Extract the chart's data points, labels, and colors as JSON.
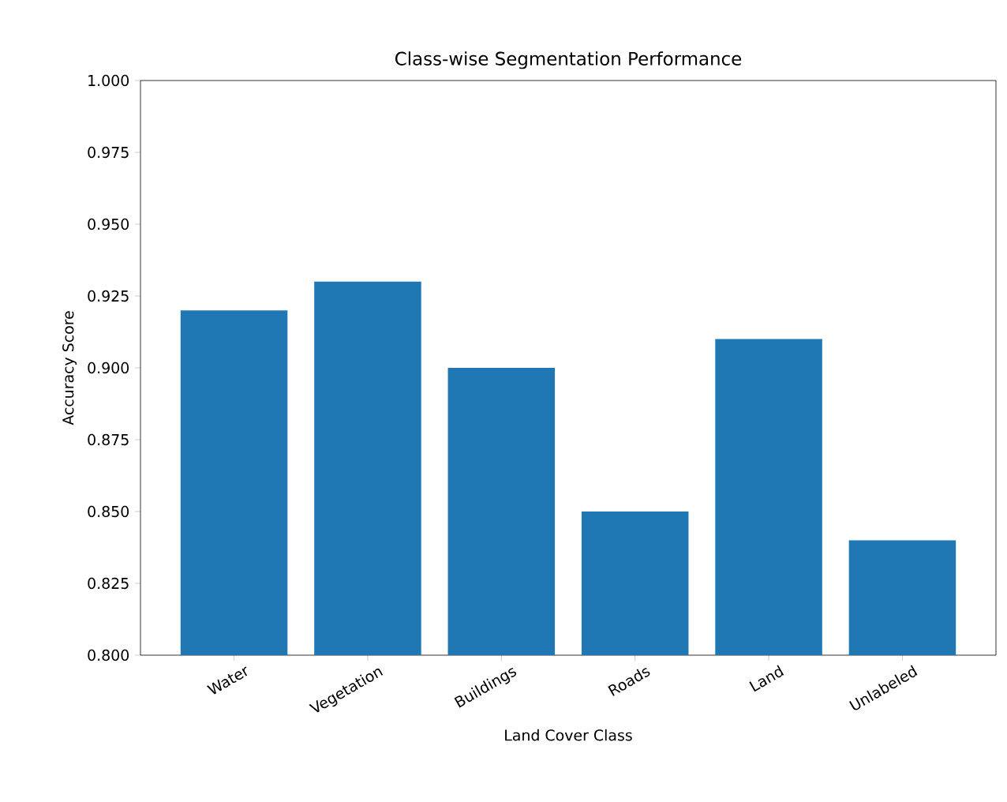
{
  "chart_data": {
    "type": "bar",
    "title": "Class-wise Segmentation Performance",
    "xlabel": "Land Cover Class",
    "ylabel": "Accuracy Score",
    "categories": [
      "Water",
      "Vegetation",
      "Buildings",
      "Roads",
      "Land",
      "Unlabeled"
    ],
    "values": [
      0.92,
      0.93,
      0.9,
      0.85,
      0.91,
      0.84
    ],
    "color": "#1f77b4",
    "ylim": [
      0.8,
      1.0
    ],
    "yticks": [
      {
        "value": 0.8,
        "label": "0.800"
      },
      {
        "value": 0.825,
        "label": "0.825"
      },
      {
        "value": 0.85,
        "label": "0.850"
      },
      {
        "value": 0.875,
        "label": "0.875"
      },
      {
        "value": 0.9,
        "label": "0.900"
      },
      {
        "value": 0.925,
        "label": "0.925"
      },
      {
        "value": 0.95,
        "label": "0.950"
      },
      {
        "value": 0.975,
        "label": "0.975"
      },
      {
        "value": 1.0,
        "label": "1.000"
      }
    ]
  }
}
